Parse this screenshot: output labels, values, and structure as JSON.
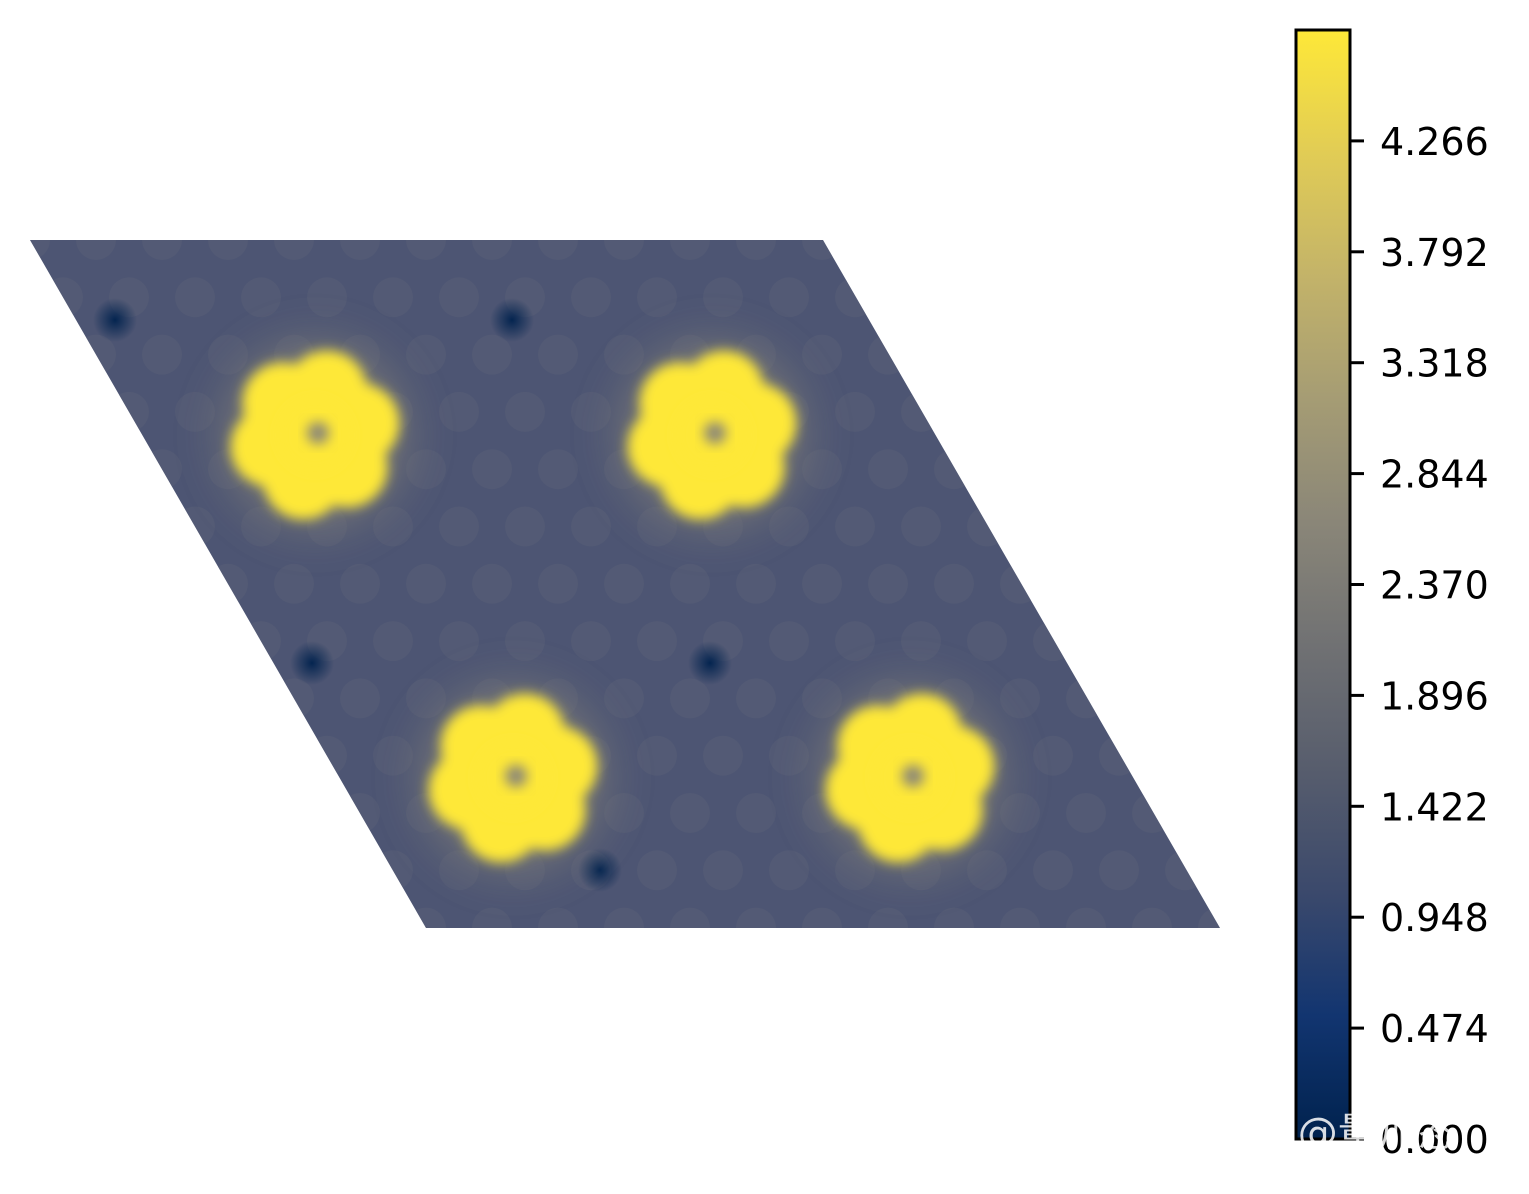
{
  "chart_data": {
    "type": "heatmap",
    "title": "",
    "xlabel": "",
    "ylabel": "",
    "colormap": "cividis",
    "colormap_stops": [
      "#00224e",
      "#123570",
      "#3b496c",
      "#575d6d",
      "#707173",
      "#8a8678",
      "#a59c74",
      "#c3b369",
      "#e1cc55",
      "#fee838"
    ],
    "background_color": "#4d5573",
    "value_range": [
      0.0,
      4.74
    ],
    "colorbar": {
      "ticks": [
        0.0,
        0.474,
        0.948,
        1.422,
        1.896,
        2.37,
        2.844,
        3.318,
        3.792,
        4.266
      ],
      "tick_labels": [
        "0.000",
        "0.474",
        "0.948",
        "1.422",
        "1.896",
        "2.370",
        "2.844",
        "3.318",
        "3.792",
        "4.266"
      ]
    },
    "features": [
      {
        "name": "hot-spot",
        "peak_value": 4.74
      },
      {
        "name": "hot-spot",
        "peak_value": 4.74
      },
      {
        "name": "hot-spot",
        "peak_value": 4.74
      },
      {
        "name": "hot-spot",
        "peak_value": 4.74
      }
    ]
  },
  "watermark": {
    "text": "知乎 @量加态"
  }
}
